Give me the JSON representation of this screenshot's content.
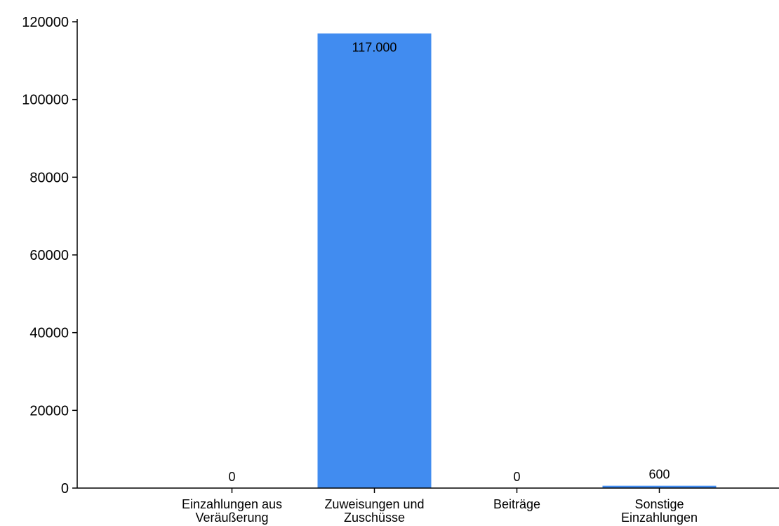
{
  "chart_data": {
    "type": "bar",
    "categories": [
      [
        "Einzahlungen aus",
        "Veräußerung"
      ],
      [
        "Zuweisungen und",
        "Zuschüsse"
      ],
      [
        "Beiträge"
      ],
      [
        "Sonstige",
        "Einzahlungen"
      ]
    ],
    "values": [
      0,
      117000,
      0,
      600
    ],
    "data_labels": [
      "0",
      "117.000",
      "0",
      "600"
    ],
    "yticks": [
      "0",
      "20000",
      "40000",
      "60000",
      "80000",
      "100000",
      "120000"
    ],
    "ylim": [
      0,
      120000
    ],
    "bar_color": "#418CF0",
    "grid": false,
    "legend": false
  }
}
